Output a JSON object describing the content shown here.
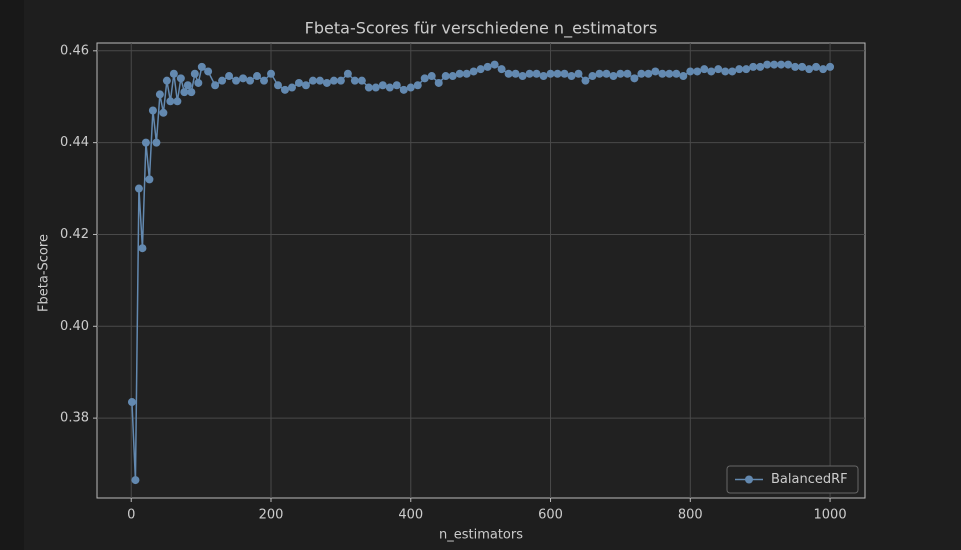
{
  "chart_data": {
    "type": "line",
    "title": "Fbeta-Scores für verschiedene n_estimators",
    "xlabel": "n_estimators",
    "ylabel": "Fbeta-Score",
    "x": [
      1,
      6,
      11,
      16,
      21,
      26,
      31,
      36,
      41,
      46,
      51,
      56,
      61,
      66,
      71,
      76,
      81,
      86,
      91,
      96,
      101,
      110,
      120,
      130,
      140,
      150,
      160,
      170,
      180,
      190,
      200,
      210,
      220,
      230,
      240,
      250,
      260,
      270,
      280,
      290,
      300,
      310,
      320,
      330,
      340,
      350,
      360,
      370,
      380,
      390,
      400,
      410,
      420,
      430,
      440,
      450,
      460,
      470,
      480,
      490,
      500,
      510,
      520,
      530,
      540,
      550,
      560,
      570,
      580,
      590,
      600,
      610,
      620,
      630,
      640,
      650,
      660,
      670,
      680,
      690,
      700,
      710,
      720,
      730,
      740,
      750,
      760,
      770,
      780,
      790,
      800,
      810,
      820,
      830,
      840,
      850,
      860,
      870,
      880,
      890,
      900,
      910,
      920,
      930,
      940,
      950,
      960,
      970,
      980,
      990,
      1000
    ],
    "series": [
      {
        "name": "BalancedRF",
        "color": "#6389b0",
        "values": [
          0.3835,
          0.3665,
          0.43,
          0.417,
          0.44,
          0.432,
          0.447,
          0.44,
          0.4505,
          0.4465,
          0.4535,
          0.449,
          0.455,
          0.449,
          0.454,
          0.451,
          0.4525,
          0.451,
          0.455,
          0.453,
          0.4565,
          0.4555,
          0.4525,
          0.4535,
          0.4545,
          0.4535,
          0.454,
          0.4535,
          0.4545,
          0.4535,
          0.455,
          0.4525,
          0.4515,
          0.452,
          0.453,
          0.4525,
          0.4535,
          0.4535,
          0.453,
          0.4535,
          0.4535,
          0.455,
          0.4535,
          0.4535,
          0.452,
          0.452,
          0.4525,
          0.452,
          0.4525,
          0.4515,
          0.452,
          0.4525,
          0.454,
          0.4545,
          0.453,
          0.4545,
          0.4545,
          0.455,
          0.455,
          0.4555,
          0.456,
          0.4565,
          0.457,
          0.456,
          0.455,
          0.455,
          0.4545,
          0.455,
          0.455,
          0.4545,
          0.455,
          0.455,
          0.455,
          0.4545,
          0.455,
          0.4535,
          0.4545,
          0.455,
          0.455,
          0.4545,
          0.455,
          0.455,
          0.454,
          0.455,
          0.455,
          0.4555,
          0.455,
          0.455,
          0.455,
          0.4545,
          0.4555,
          0.4555,
          0.456,
          0.4555,
          0.456,
          0.4555,
          0.4555,
          0.456,
          0.456,
          0.4565,
          0.4565,
          0.457,
          0.457,
          0.457,
          0.457,
          0.4565,
          0.4565,
          0.456,
          0.4565,
          0.456,
          0.4565
        ]
      }
    ],
    "xlim": [
      -49,
      1050
    ],
    "ylim": [
      0.3626,
      0.4617
    ],
    "xticks": [
      0,
      200,
      400,
      600,
      800,
      1000
    ],
    "yticks": [
      0.38,
      {
        "value": 0.4,
        "label": "0.40"
      },
      0.42,
      0.44,
      0.46
    ],
    "grid": true,
    "legend": "lower right"
  }
}
